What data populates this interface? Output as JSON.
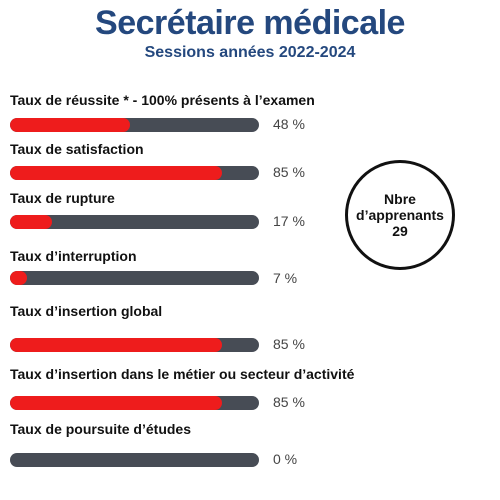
{
  "colors": {
    "title": "#24487e",
    "fill": "#ee1c1c",
    "track": "#474c55"
  },
  "header": {
    "title": "Secrétaire médicale",
    "subtitle": "Sessions années 2022-2024"
  },
  "stats": [
    {
      "label": "Taux de réussite * - 100% présents à l’examen",
      "percent": 48,
      "value_text": "48 %"
    },
    {
      "label": "Taux de satisfaction",
      "percent": 85,
      "value_text": "85 %"
    },
    {
      "label": "Taux de rupture",
      "percent": 17,
      "value_text": "17 %"
    },
    {
      "label": "Taux d’interruption",
      "percent": 7,
      "value_text": "7 %"
    },
    {
      "label": "Taux d’insertion global",
      "percent": 85,
      "value_text": "85 %"
    },
    {
      "label": "Taux d’insertion dans le métier ou secteur d’activité",
      "percent": 85,
      "value_text": "85 %"
    },
    {
      "label": "Taux de poursuite d’études",
      "percent": 0,
      "value_text": "0 %"
    }
  ],
  "apprenants": {
    "line1": "Nbre",
    "line2": "d’apprenants",
    "count": "29"
  }
}
